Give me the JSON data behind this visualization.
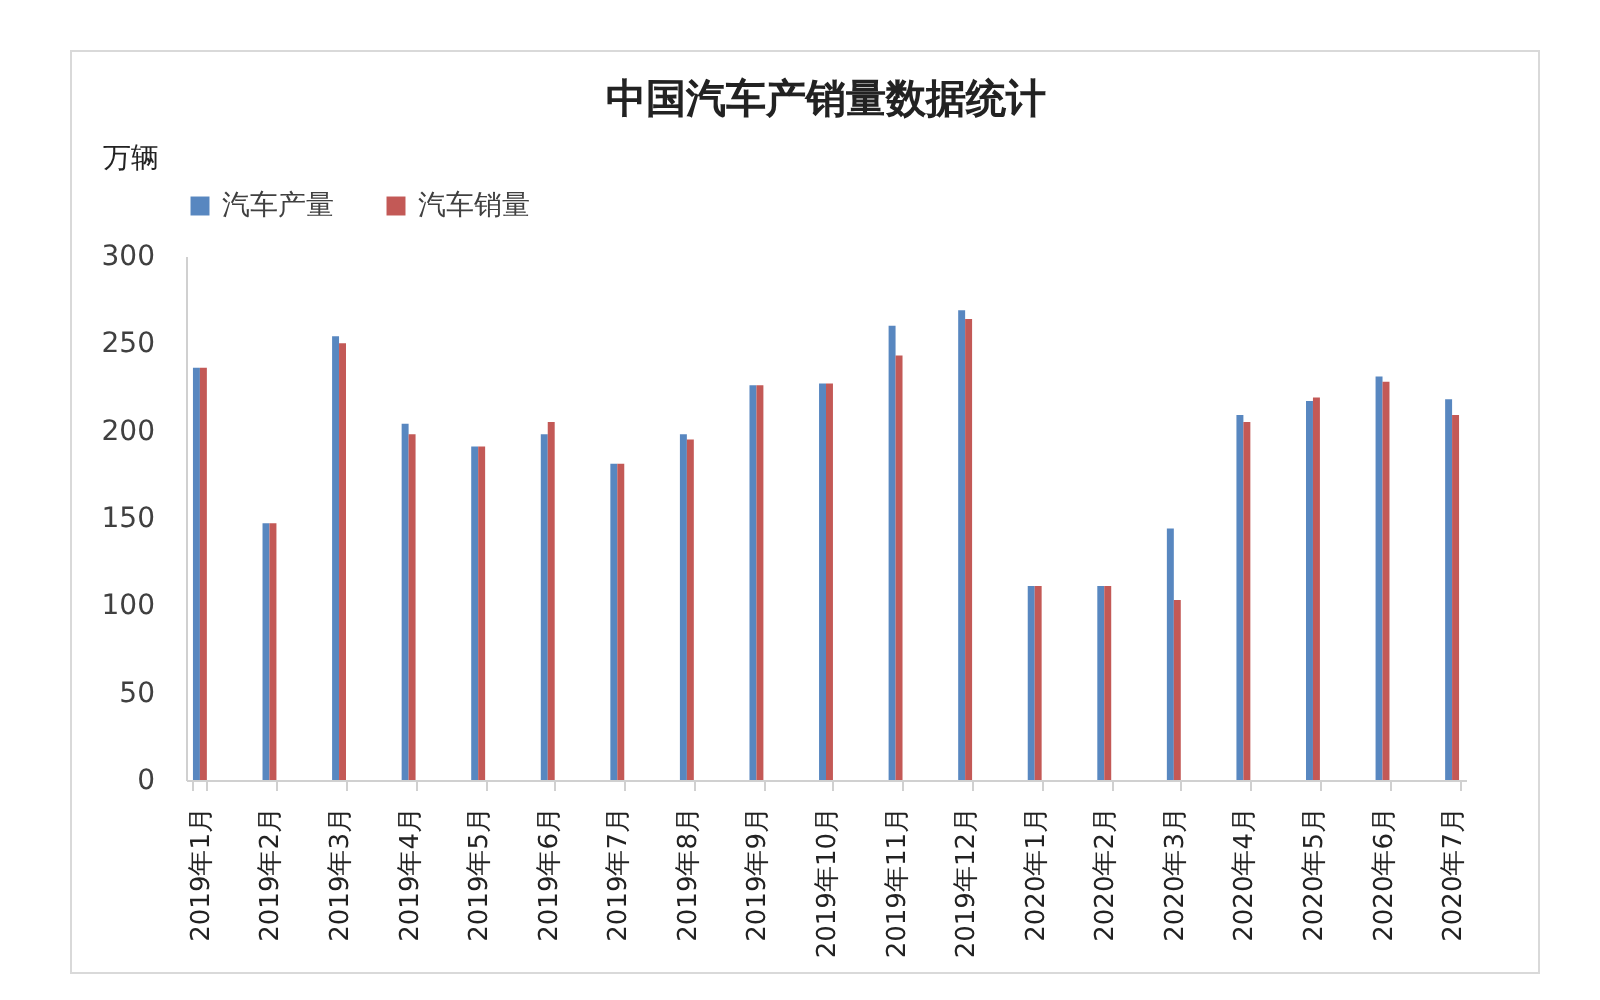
{
  "chart_data": {
    "type": "bar",
    "title": "中国汽车产销量数据统计",
    "ylabel": "万辆",
    "categories": [
      "2019年1月",
      "2019年2月",
      "2019年3月",
      "2019年4月",
      "2019年5月",
      "2019年6月",
      "2019年7月",
      "2019年8月",
      "2019年9月",
      "2019年10月",
      "2019年11月",
      "2019年12月",
      "2020年1月",
      "2020年2月",
      "2020年3月",
      "2020年4月",
      "2020年5月",
      "2020年6月",
      "2020年7月"
    ],
    "series": [
      {
        "name": "汽车产量",
        "color": "#4f81bd",
        "values": [
          236,
          147,
          254,
          204,
          191,
          198,
          181,
          198,
          226,
          227,
          260,
          269,
          111,
          111,
          144,
          209,
          217,
          231,
          218
        ]
      },
      {
        "name": "汽车销量",
        "color": "#c0504d",
        "values": [
          236,
          147,
          250,
          198,
          191,
          205,
          181,
          195,
          226,
          227,
          243,
          264,
          111,
          111,
          103,
          205,
          219,
          228,
          209
        ]
      }
    ],
    "ylim": [
      0,
      300
    ],
    "yticks": [
      0,
      50,
      100,
      150,
      200,
      250,
      300
    ],
    "legend": "top"
  }
}
